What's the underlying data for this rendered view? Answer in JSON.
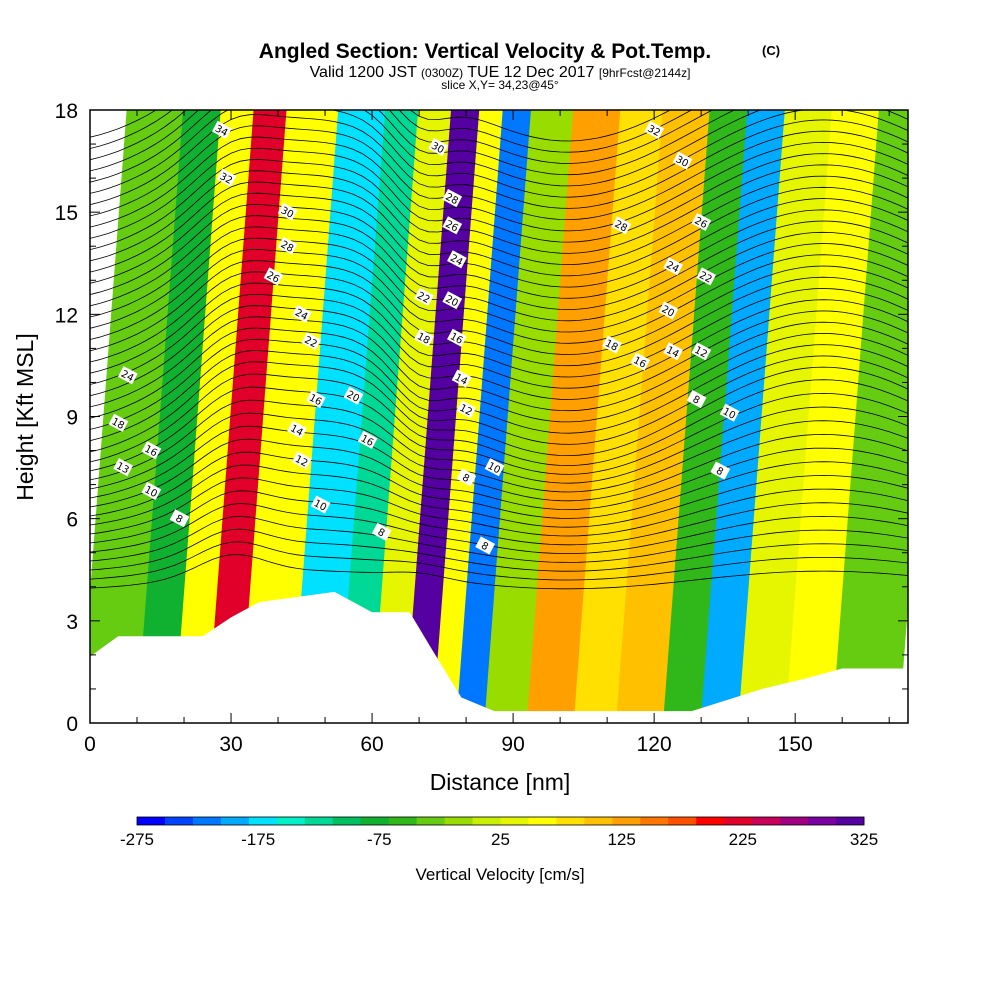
{
  "chart_data": {
    "type": "heatmap",
    "title": "Angled Section: Vertical Velocity & Pot.Temp.",
    "title_tag": "(C)",
    "subtitle": {
      "lead": "Valid 1200 JST",
      "utc": "(0300Z)",
      "date": "TUE 12 Dec 2017",
      "fcst": "[9hrFcst@2144z]"
    },
    "slice_label": "slice X,Y= 34,23@45°",
    "xlabel": "Distance [nm]",
    "ylabel": "Height [Kft MSL]",
    "xlim": [
      0,
      174
    ],
    "ylim": [
      0,
      18
    ],
    "xticks": [
      0,
      30,
      60,
      90,
      120,
      150
    ],
    "yticks": [
      0,
      3,
      6,
      9,
      12,
      15,
      18
    ],
    "grid": false,
    "colorbar": {
      "label": "Vertical Velocity [cm/s]",
      "ticks": [
        -275,
        -175,
        -75,
        25,
        125,
        225,
        325
      ],
      "range": [
        -275,
        325
      ],
      "colors": [
        "#0000ff",
        "#0044ff",
        "#0077ff",
        "#00aaff",
        "#00e0ff",
        "#00f0c8",
        "#00d896",
        "#00c060",
        "#10b030",
        "#30b81a",
        "#66cc11",
        "#99dd00",
        "#c8ee00",
        "#e6f500",
        "#ffff00",
        "#ffe000",
        "#ffc000",
        "#ffa000",
        "#ff7700",
        "#ff5000",
        "#ff0000",
        "#e0002a",
        "#c8005a",
        "#a00080",
        "#7a00a0",
        "#5500a0"
      ]
    },
    "vertical_velocity_bands": [
      {
        "x": 0,
        "value": -30
      },
      {
        "x": 12,
        "value": -80
      },
      {
        "x": 20,
        "value": 60
      },
      {
        "x": 27,
        "value": 230
      },
      {
        "x": 34,
        "value": 60
      },
      {
        "x": 45,
        "value": -180
      },
      {
        "x": 55,
        "value": -120
      },
      {
        "x": 62,
        "value": 40
      },
      {
        "x": 69,
        "value": 310
      },
      {
        "x": 75,
        "value": 60
      },
      {
        "x": 80,
        "value": -220
      },
      {
        "x": 86,
        "value": -20
      },
      {
        "x": 95,
        "value": 140
      },
      {
        "x": 105,
        "value": 80
      },
      {
        "x": 114,
        "value": 100
      },
      {
        "x": 124,
        "value": -60
      },
      {
        "x": 132,
        "value": -200
      },
      {
        "x": 140,
        "value": 30
      },
      {
        "x": 150,
        "value": 70
      },
      {
        "x": 160,
        "value": -30
      },
      {
        "x": 174,
        "value": -20
      }
    ],
    "terrain": [
      [
        0,
        1.95
      ],
      [
        3,
        2.25
      ],
      [
        6,
        2.55
      ],
      [
        24,
        2.55
      ],
      [
        30,
        3.1
      ],
      [
        36,
        3.55
      ],
      [
        52,
        3.85
      ],
      [
        60,
        3.25
      ],
      [
        68,
        3.25
      ],
      [
        73,
        2.1
      ],
      [
        79,
        0.75
      ],
      [
        86,
        0.35
      ],
      [
        128,
        0.35
      ],
      [
        143,
        1.0
      ],
      [
        152,
        1.3
      ],
      [
        160,
        1.6
      ],
      [
        174,
        1.6
      ]
    ],
    "pot_temp_labels": [
      {
        "x": 28,
        "y": 17.4,
        "text": "34"
      },
      {
        "x": 29,
        "y": 16.0,
        "text": "32"
      },
      {
        "x": 42,
        "y": 15.0,
        "text": "30"
      },
      {
        "x": 42,
        "y": 14.0,
        "text": "28"
      },
      {
        "x": 39,
        "y": 13.1,
        "text": "26"
      },
      {
        "x": 45,
        "y": 12.0,
        "text": "24"
      },
      {
        "x": 47,
        "y": 11.2,
        "text": "22"
      },
      {
        "x": 8,
        "y": 10.2,
        "text": "24"
      },
      {
        "x": 6,
        "y": 8.8,
        "text": "18"
      },
      {
        "x": 13,
        "y": 8.0,
        "text": "16"
      },
      {
        "x": 7,
        "y": 7.5,
        "text": "13"
      },
      {
        "x": 13,
        "y": 6.8,
        "text": "10"
      },
      {
        "x": 19,
        "y": 6.0,
        "text": "8"
      },
      {
        "x": 48,
        "y": 9.5,
        "text": "16"
      },
      {
        "x": 56,
        "y": 9.6,
        "text": "20"
      },
      {
        "x": 44,
        "y": 8.6,
        "text": "14"
      },
      {
        "x": 45,
        "y": 7.7,
        "text": "12"
      },
      {
        "x": 59,
        "y": 8.3,
        "text": "16"
      },
      {
        "x": 49,
        "y": 6.4,
        "text": "10"
      },
      {
        "x": 62,
        "y": 5.6,
        "text": "8"
      },
      {
        "x": 74,
        "y": 16.9,
        "text": "30"
      },
      {
        "x": 77,
        "y": 15.4,
        "text": "28"
      },
      {
        "x": 77,
        "y": 14.6,
        "text": "26"
      },
      {
        "x": 78,
        "y": 13.6,
        "text": "24"
      },
      {
        "x": 71,
        "y": 12.5,
        "text": "22"
      },
      {
        "x": 77,
        "y": 12.4,
        "text": "20"
      },
      {
        "x": 71,
        "y": 11.3,
        "text": "18"
      },
      {
        "x": 78,
        "y": 11.3,
        "text": "16"
      },
      {
        "x": 79,
        "y": 10.1,
        "text": "14"
      },
      {
        "x": 80,
        "y": 9.2,
        "text": "12"
      },
      {
        "x": 86,
        "y": 7.5,
        "text": "10"
      },
      {
        "x": 80,
        "y": 7.2,
        "text": "8"
      },
      {
        "x": 84,
        "y": 5.2,
        "text": "8"
      },
      {
        "x": 120,
        "y": 17.4,
        "text": "32"
      },
      {
        "x": 126,
        "y": 16.5,
        "text": "30"
      },
      {
        "x": 113,
        "y": 14.6,
        "text": "28"
      },
      {
        "x": 130,
        "y": 14.7,
        "text": "26"
      },
      {
        "x": 124,
        "y": 13.4,
        "text": "24"
      },
      {
        "x": 131,
        "y": 13.1,
        "text": "22"
      },
      {
        "x": 123,
        "y": 12.1,
        "text": "20"
      },
      {
        "x": 111,
        "y": 11.1,
        "text": "18"
      },
      {
        "x": 117,
        "y": 10.6,
        "text": "16"
      },
      {
        "x": 124,
        "y": 10.9,
        "text": "14"
      },
      {
        "x": 130,
        "y": 10.9,
        "text": "12"
      },
      {
        "x": 129,
        "y": 9.5,
        "text": "8"
      },
      {
        "x": 136,
        "y": 9.1,
        "text": "10"
      },
      {
        "x": 134,
        "y": 7.4,
        "text": "8"
      }
    ]
  }
}
